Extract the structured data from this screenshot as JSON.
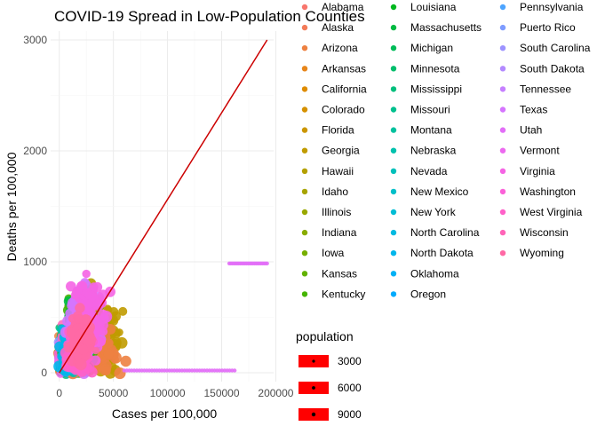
{
  "chart_data": {
    "type": "scatter",
    "title": "COVID-19 Spread in Low-Population Counties",
    "xlabel": "Cases per 100,000",
    "ylabel": "Deaths per 100,000",
    "xlim": [
      -8000,
      198000
    ],
    "ylim": [
      -80,
      3080
    ],
    "x_ticks": [
      0,
      50000,
      100000,
      150000,
      200000
    ],
    "x_tick_labels": [
      "0",
      "50000",
      "100000",
      "150000",
      "200000"
    ],
    "y_ticks": [
      0,
      1000,
      2000,
      3000
    ],
    "y_tick_labels": [
      "0",
      "1000",
      "2000",
      "3000"
    ],
    "grid": true,
    "legend_placement": "right",
    "color_legend_title": "",
    "states": [
      {
        "name": "Alabama",
        "color": "#F8766D"
      },
      {
        "name": "Alaska",
        "color": "#F37B59"
      },
      {
        "name": "Arizona",
        "color": "#ED8141"
      },
      {
        "name": "Arkansas",
        "color": "#E7861B"
      },
      {
        "name": "California",
        "color": "#DE8C00"
      },
      {
        "name": "Colorado",
        "color": "#D59100"
      },
      {
        "name": "Florida",
        "color": "#CB9600"
      },
      {
        "name": "Georgia",
        "color": "#C09B00"
      },
      {
        "name": "Hawaii",
        "color": "#B4A000"
      },
      {
        "name": "Idaho",
        "color": "#A7A400"
      },
      {
        "name": "Illinois",
        "color": "#99A800"
      },
      {
        "name": "Indiana",
        "color": "#89AC00"
      },
      {
        "name": "Iowa",
        "color": "#77AF00"
      },
      {
        "name": "Kansas",
        "color": "#62B200"
      },
      {
        "name": "Kentucky",
        "color": "#45B500"
      },
      {
        "name": "Louisiana",
        "color": "#00B81F"
      },
      {
        "name": "Massachusetts",
        "color": "#00BA42"
      },
      {
        "name": "Michigan",
        "color": "#00BC59"
      },
      {
        "name": "Minnesota",
        "color": "#00BE6C"
      },
      {
        "name": "Mississippi",
        "color": "#00BF7D"
      },
      {
        "name": "Missouri",
        "color": "#00C08E"
      },
      {
        "name": "Montana",
        "color": "#00C19E"
      },
      {
        "name": "Nebraska",
        "color": "#00C1AD"
      },
      {
        "name": "Nevada",
        "color": "#00C0BB"
      },
      {
        "name": "New Mexico",
        "color": "#00BFC9"
      },
      {
        "name": "New York",
        "color": "#00BDD5"
      },
      {
        "name": "North Carolina",
        "color": "#00BAE1"
      },
      {
        "name": "North Dakota",
        "color": "#00B6EB"
      },
      {
        "name": "Oklahoma",
        "color": "#00B1F5"
      },
      {
        "name": "Oregon",
        "color": "#00ABFD"
      },
      {
        "name": "Pennsylvania",
        "color": "#4DA4FF"
      },
      {
        "name": "Puerto Rico",
        "color": "#7E9CFF"
      },
      {
        "name": "South Carolina",
        "color": "#9D93FF"
      },
      {
        "name": "South Dakota",
        "color": "#B38AFF"
      },
      {
        "name": "Tennessee",
        "color": "#C680FF"
      },
      {
        "name": "Texas",
        "color": "#D575FE"
      },
      {
        "name": "Utah",
        "color": "#E26EF7"
      },
      {
        "name": "Vermont",
        "color": "#EC69EF"
      },
      {
        "name": "Virginia",
        "color": "#F564E4"
      },
      {
        "name": "Washington",
        "color": "#FB61D8"
      },
      {
        "name": "West Virginia",
        "color": "#FF61C9"
      },
      {
        "name": "Wisconsin",
        "color": "#FF64B8"
      },
      {
        "name": "Wyoming",
        "color": "#FF69A5"
      }
    ],
    "size_legend": {
      "title": "population",
      "color": "#FF0000",
      "values": [
        3000,
        6000,
        9000
      ],
      "labels": [
        "3000",
        "6000",
        "9000"
      ]
    },
    "trend_line": {
      "color": "#CC0000",
      "points": [
        [
          0,
          0
        ],
        [
          192000,
          3000
        ]
      ]
    },
    "highlighted_series": [
      {
        "state": "Puerto Rico",
        "color": "#E26EF7",
        "y": 985,
        "x_range": [
          157000,
          192000
        ],
        "count": 25
      },
      {
        "state": "Utah",
        "color": "#E26EF7",
        "y": 20,
        "x_range": [
          60000,
          162000
        ],
        "count": 45
      }
    ],
    "clusters": [
      {
        "state": "Georgia",
        "x_center": 38000,
        "y_center": 300,
        "x_spread": 18000,
        "y_spread": 320
      },
      {
        "state": "Hawaii",
        "x_center": 30000,
        "y_center": 450,
        "x_spread": 12000,
        "y_spread": 280
      },
      {
        "state": "Arizona",
        "x_center": 30000,
        "y_center": 180,
        "x_spread": 22000,
        "y_spread": 200
      },
      {
        "state": "Kentucky",
        "x_center": 20000,
        "y_center": 380,
        "x_spread": 14000,
        "y_spread": 260
      },
      {
        "state": "Massachusetts",
        "x_center": 18000,
        "y_center": 300,
        "x_spread": 12000,
        "y_spread": 250
      },
      {
        "state": "Nebraska",
        "x_center": 15000,
        "y_center": 250,
        "x_spread": 12000,
        "y_spread": 220
      },
      {
        "state": "North Dakota",
        "x_center": 12000,
        "y_center": 200,
        "x_spread": 10000,
        "y_spread": 200
      },
      {
        "state": "Texas",
        "x_center": 22000,
        "y_center": 450,
        "x_spread": 14000,
        "y_spread": 330
      },
      {
        "state": "Virginia",
        "x_center": 28000,
        "y_center": 500,
        "x_spread": 14000,
        "y_spread": 330
      },
      {
        "state": "West Virginia",
        "x_center": 18000,
        "y_center": 200,
        "x_spread": 12000,
        "y_spread": 180
      },
      {
        "state": "Wyoming",
        "x_center": 20000,
        "y_center": 300,
        "x_spread": 10000,
        "y_spread": 200
      }
    ]
  }
}
